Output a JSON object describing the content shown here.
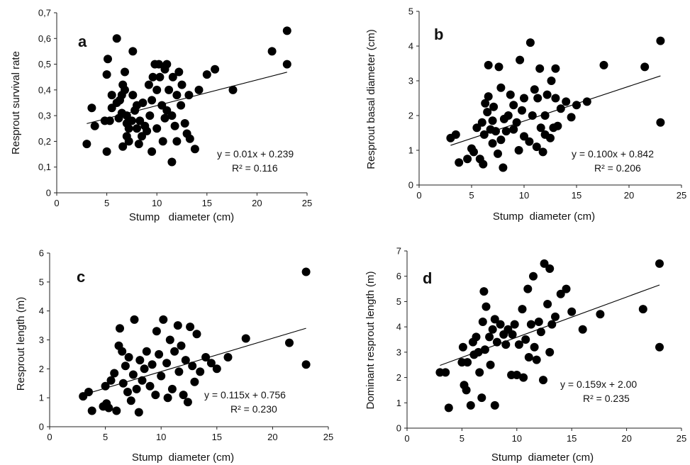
{
  "chart_data": [
    {
      "type": "scatter",
      "panel_label": "a",
      "xlabel": "Stump   diameter (cm)",
      "ylabel": "Resprout survival rate",
      "xlim": [
        0,
        25
      ],
      "ylim": [
        0,
        0.7
      ],
      "x_ticks": [
        "0",
        "5",
        "10",
        "15",
        "20",
        "25"
      ],
      "y_ticks": [
        "0",
        "0,1",
        "0,2",
        "0,3",
        "0,4",
        "0,5",
        "0,6",
        "0,7"
      ],
      "equation": "y = 0.01x + 0.239",
      "r_squared": "R² = 0.116",
      "trendline": {
        "slope": 0.01,
        "intercept": 0.239
      },
      "points": [
        [
          3.0,
          0.19
        ],
        [
          3.5,
          0.33
        ],
        [
          3.8,
          0.26
        ],
        [
          4.8,
          0.28
        ],
        [
          5.0,
          0.16
        ],
        [
          5.0,
          0.46
        ],
        [
          5.1,
          0.52
        ],
        [
          5.3,
          0.28
        ],
        [
          5.5,
          0.38
        ],
        [
          5.5,
          0.33
        ],
        [
          6.0,
          0.6
        ],
        [
          6.0,
          0.35
        ],
        [
          6.2,
          0.29
        ],
        [
          6.3,
          0.36
        ],
        [
          6.5,
          0.31
        ],
        [
          6.5,
          0.38
        ],
        [
          6.6,
          0.42
        ],
        [
          6.6,
          0.18
        ],
        [
          6.8,
          0.47
        ],
        [
          6.8,
          0.4
        ],
        [
          7.0,
          0.3
        ],
        [
          7.0,
          0.27
        ],
        [
          7.0,
          0.22
        ],
        [
          7.2,
          0.2
        ],
        [
          7.2,
          0.25
        ],
        [
          7.5,
          0.28
        ],
        [
          7.6,
          0.38
        ],
        [
          7.6,
          0.55
        ],
        [
          7.8,
          0.32
        ],
        [
          8.0,
          0.25
        ],
        [
          8.0,
          0.34
        ],
        [
          8.2,
          0.19
        ],
        [
          8.3,
          0.28
        ],
        [
          8.5,
          0.22
        ],
        [
          8.6,
          0.35
        ],
        [
          8.8,
          0.26
        ],
        [
          9.0,
          0.24
        ],
        [
          9.2,
          0.42
        ],
        [
          9.3,
          0.3
        ],
        [
          9.5,
          0.16
        ],
        [
          9.5,
          0.36
        ],
        [
          9.6,
          0.45
        ],
        [
          9.8,
          0.5
        ],
        [
          10.0,
          0.4
        ],
        [
          10.0,
          0.25
        ],
        [
          10.2,
          0.5
        ],
        [
          10.3,
          0.45
        ],
        [
          10.5,
          0.34
        ],
        [
          10.6,
          0.2
        ],
        [
          10.8,
          0.29
        ],
        [
          10.8,
          0.48
        ],
        [
          11.0,
          0.5
        ],
        [
          11.0,
          0.32
        ],
        [
          11.2,
          0.4
        ],
        [
          11.5,
          0.12
        ],
        [
          11.5,
          0.3
        ],
        [
          11.6,
          0.45
        ],
        [
          11.8,
          0.26
        ],
        [
          12.0,
          0.38
        ],
        [
          12.0,
          0.2
        ],
        [
          12.2,
          0.47
        ],
        [
          12.4,
          0.34
        ],
        [
          12.5,
          0.42
        ],
        [
          12.8,
          0.27
        ],
        [
          13.0,
          0.23
        ],
        [
          13.2,
          0.38
        ],
        [
          13.3,
          0.21
        ],
        [
          13.8,
          0.17
        ],
        [
          14.2,
          0.4
        ],
        [
          15.0,
          0.46
        ],
        [
          15.8,
          0.48
        ],
        [
          17.6,
          0.4
        ],
        [
          21.5,
          0.55
        ],
        [
          23.0,
          0.5
        ],
        [
          23.0,
          0.63
        ]
      ]
    },
    {
      "type": "scatter",
      "panel_label": "b",
      "xlabel": "Stump  diameter (cm)",
      "ylabel": "Resprout basal diameter (cm)",
      "xlim": [
        0,
        25
      ],
      "ylim": [
        0,
        5
      ],
      "x_ticks": [
        "0",
        "5",
        "10",
        "15",
        "20",
        "25"
      ],
      "y_ticks": [
        "0",
        "1",
        "2",
        "3",
        "4",
        "5"
      ],
      "equation": "y = 0.100x + 0.842",
      "r_squared": "R² = 0.206",
      "trendline": {
        "slope": 0.1,
        "intercept": 0.842
      },
      "points": [
        [
          3.0,
          1.35
        ],
        [
          3.5,
          1.45
        ],
        [
          3.8,
          0.65
        ],
        [
          4.6,
          0.75
        ],
        [
          5.0,
          1.05
        ],
        [
          5.2,
          0.95
        ],
        [
          5.5,
          1.65
        ],
        [
          5.8,
          0.75
        ],
        [
          6.0,
          1.8
        ],
        [
          6.1,
          0.6
        ],
        [
          6.2,
          1.45
        ],
        [
          6.3,
          2.35
        ],
        [
          6.5,
          2.1
        ],
        [
          6.6,
          2.55
        ],
        [
          6.6,
          3.45
        ],
        [
          6.8,
          1.6
        ],
        [
          7.0,
          1.2
        ],
        [
          7.0,
          1.85
        ],
        [
          7.1,
          2.25
        ],
        [
          7.3,
          1.55
        ],
        [
          7.5,
          0.9
        ],
        [
          7.6,
          3.4
        ],
        [
          7.8,
          1.3
        ],
        [
          7.8,
          2.8
        ],
        [
          8.0,
          0.5
        ],
        [
          8.1,
          1.9
        ],
        [
          8.3,
          1.55
        ],
        [
          8.5,
          2.0
        ],
        [
          8.7,
          2.6
        ],
        [
          9.0,
          1.6
        ],
        [
          9.0,
          2.3
        ],
        [
          9.3,
          1.8
        ],
        [
          9.5,
          1.0
        ],
        [
          9.6,
          3.6
        ],
        [
          9.8,
          2.15
        ],
        [
          10.0,
          1.4
        ],
        [
          10.0,
          2.5
        ],
        [
          10.5,
          1.25
        ],
        [
          10.6,
          4.1
        ],
        [
          10.8,
          2.0
        ],
        [
          11.0,
          2.75
        ],
        [
          11.2,
          1.1
        ],
        [
          11.3,
          2.5
        ],
        [
          11.5,
          3.35
        ],
        [
          11.6,
          1.65
        ],
        [
          11.8,
          0.95
        ],
        [
          12.0,
          2.0
        ],
        [
          12.0,
          1.45
        ],
        [
          12.2,
          2.6
        ],
        [
          12.5,
          1.35
        ],
        [
          12.6,
          3.0
        ],
        [
          12.8,
          1.65
        ],
        [
          13.0,
          2.5
        ],
        [
          13.0,
          3.35
        ],
        [
          13.2,
          1.7
        ],
        [
          13.5,
          2.2
        ],
        [
          14.0,
          2.4
        ],
        [
          14.5,
          1.95
        ],
        [
          15.0,
          2.3
        ],
        [
          16.0,
          2.4
        ],
        [
          17.6,
          3.45
        ],
        [
          21.5,
          3.4
        ],
        [
          23.0,
          4.15
        ],
        [
          23.0,
          1.8
        ]
      ]
    },
    {
      "type": "scatter",
      "panel_label": "c",
      "xlabel": "Stump  diameter (cm)",
      "ylabel": "Resprout length (m)",
      "xlim": [
        0,
        25
      ],
      "ylim": [
        0,
        6
      ],
      "x_ticks": [
        "0",
        "5",
        "10",
        "15",
        "20",
        "25"
      ],
      "y_ticks": [
        "0",
        "1",
        "2",
        "3",
        "4",
        "5",
        "6"
      ],
      "equation": "y = 0.115x + 0.756",
      "r_squared": "R² = 0.230",
      "trendline": {
        "slope": 0.115,
        "intercept": 0.756
      },
      "points": [
        [
          3.0,
          1.05
        ],
        [
          3.5,
          1.2
        ],
        [
          3.8,
          0.55
        ],
        [
          4.8,
          0.7
        ],
        [
          5.0,
          1.4
        ],
        [
          5.1,
          0.8
        ],
        [
          5.3,
          0.65
        ],
        [
          5.5,
          1.6
        ],
        [
          5.8,
          1.85
        ],
        [
          6.0,
          0.55
        ],
        [
          6.2,
          2.8
        ],
        [
          6.3,
          3.4
        ],
        [
          6.5,
          2.6
        ],
        [
          6.6,
          1.5
        ],
        [
          6.8,
          2.1
        ],
        [
          7.0,
          1.2
        ],
        [
          7.1,
          2.4
        ],
        [
          7.3,
          0.9
        ],
        [
          7.5,
          1.8
        ],
        [
          7.6,
          3.7
        ],
        [
          7.8,
          1.3
        ],
        [
          8.0,
          0.5
        ],
        [
          8.1,
          2.3
        ],
        [
          8.3,
          1.6
        ],
        [
          8.5,
          2.0
        ],
        [
          8.7,
          2.6
        ],
        [
          9.0,
          1.4
        ],
        [
          9.2,
          2.15
        ],
        [
          9.5,
          1.1
        ],
        [
          9.6,
          3.3
        ],
        [
          9.8,
          2.5
        ],
        [
          10.0,
          1.75
        ],
        [
          10.2,
          3.7
        ],
        [
          10.5,
          2.2
        ],
        [
          10.6,
          1.0
        ],
        [
          10.8,
          3.0
        ],
        [
          11.0,
          1.3
        ],
        [
          11.2,
          2.6
        ],
        [
          11.5,
          3.5
        ],
        [
          11.6,
          1.9
        ],
        [
          11.8,
          2.8
        ],
        [
          12.0,
          1.1
        ],
        [
          12.2,
          2.3
        ],
        [
          12.4,
          0.85
        ],
        [
          12.6,
          3.45
        ],
        [
          12.8,
          2.1
        ],
        [
          13.0,
          1.55
        ],
        [
          13.2,
          3.2
        ],
        [
          13.5,
          1.9
        ],
        [
          14.0,
          2.4
        ],
        [
          14.5,
          2.2
        ],
        [
          15.0,
          2.0
        ],
        [
          16.0,
          2.4
        ],
        [
          17.6,
          3.05
        ],
        [
          21.5,
          2.9
        ],
        [
          23.0,
          2.15
        ],
        [
          23.0,
          5.35
        ]
      ]
    },
    {
      "type": "scatter",
      "panel_label": "d",
      "xlabel": "Stump  diameter (cm)",
      "ylabel": "Dominant  resprout length (m)",
      "xlim": [
        0,
        25
      ],
      "ylim": [
        0,
        7
      ],
      "x_ticks": [
        "0",
        "5",
        "10",
        "15",
        "20",
        "25"
      ],
      "y_ticks": [
        "0",
        "1",
        "2",
        "3",
        "4",
        "5",
        "6",
        "7"
      ],
      "equation": "y = 0.159x + 2.00",
      "r_squared": "R² = 0.235",
      "trendline": {
        "slope": 0.159,
        "intercept": 2.0
      },
      "points": [
        [
          3.0,
          2.2
        ],
        [
          3.5,
          2.2
        ],
        [
          3.8,
          0.8
        ],
        [
          5.0,
          2.6
        ],
        [
          5.1,
          3.2
        ],
        [
          5.2,
          1.7
        ],
        [
          5.4,
          1.5
        ],
        [
          5.5,
          2.6
        ],
        [
          5.8,
          0.9
        ],
        [
          6.0,
          3.4
        ],
        [
          6.1,
          2.9
        ],
        [
          6.3,
          3.6
        ],
        [
          6.5,
          3.0
        ],
        [
          6.6,
          2.2
        ],
        [
          6.8,
          1.2
        ],
        [
          6.9,
          4.2
        ],
        [
          7.0,
          5.4
        ],
        [
          7.1,
          3.1
        ],
        [
          7.2,
          4.8
        ],
        [
          7.5,
          3.6
        ],
        [
          7.6,
          2.5
        ],
        [
          7.8,
          3.9
        ],
        [
          8.0,
          0.9
        ],
        [
          8.0,
          4.3
        ],
        [
          8.2,
          3.4
        ],
        [
          8.5,
          4.1
        ],
        [
          8.8,
          3.7
        ],
        [
          9.0,
          3.3
        ],
        [
          9.2,
          3.9
        ],
        [
          9.5,
          2.1
        ],
        [
          9.6,
          3.7
        ],
        [
          9.8,
          4.1
        ],
        [
          10.0,
          2.1
        ],
        [
          10.2,
          3.3
        ],
        [
          10.5,
          4.7
        ],
        [
          10.6,
          2.0
        ],
        [
          10.8,
          3.5
        ],
        [
          11.0,
          5.5
        ],
        [
          11.1,
          2.8
        ],
        [
          11.3,
          4.1
        ],
        [
          11.5,
          6.0
        ],
        [
          11.6,
          3.2
        ],
        [
          11.8,
          2.7
        ],
        [
          12.0,
          4.2
        ],
        [
          12.2,
          3.8
        ],
        [
          12.4,
          1.9
        ],
        [
          12.5,
          6.5
        ],
        [
          12.8,
          4.9
        ],
        [
          13.0,
          3.0
        ],
        [
          13.0,
          6.3
        ],
        [
          13.2,
          4.1
        ],
        [
          13.5,
          4.4
        ],
        [
          14.0,
          5.3
        ],
        [
          14.5,
          5.5
        ],
        [
          15.0,
          4.6
        ],
        [
          16.0,
          3.9
        ],
        [
          17.6,
          4.5
        ],
        [
          21.5,
          4.7
        ],
        [
          23.0,
          6.5
        ],
        [
          23.0,
          3.2
        ]
      ]
    }
  ]
}
